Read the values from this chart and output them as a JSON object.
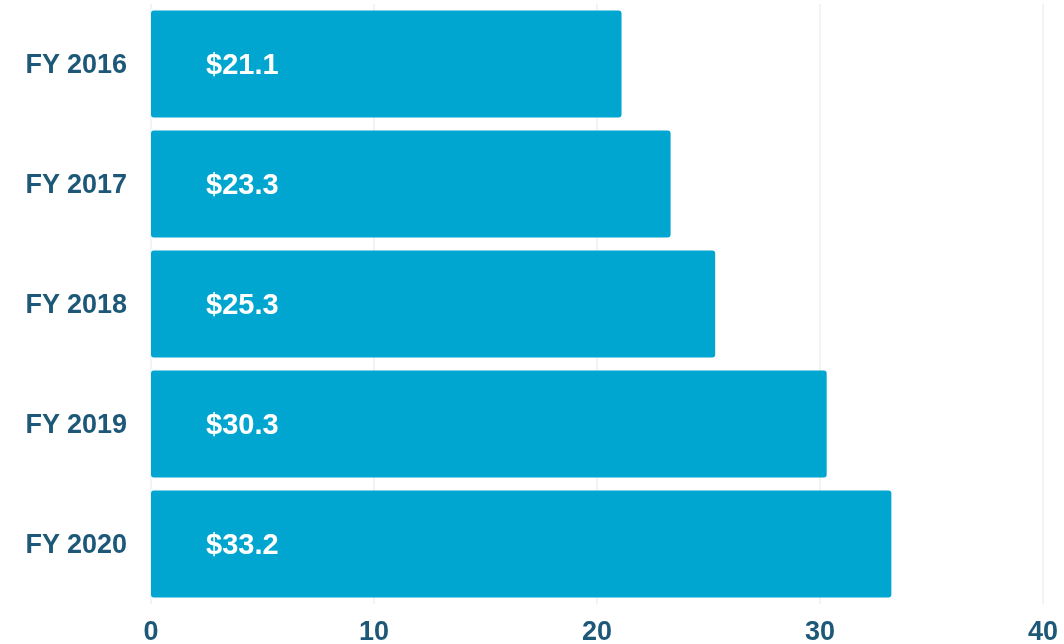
{
  "chart_data": {
    "type": "bar",
    "orientation": "horizontal",
    "categories": [
      "FY 2016",
      "FY 2017",
      "FY 2018",
      "FY 2019",
      "FY 2020"
    ],
    "values": [
      21.1,
      23.3,
      25.3,
      30.3,
      33.2
    ],
    "value_labels": [
      "$21.1",
      "$23.3",
      "$25.3",
      "$30.3",
      "$33.2"
    ],
    "color": "#00a6cf",
    "xlim": [
      0,
      40
    ],
    "xticks": [
      0,
      10,
      20,
      30,
      40
    ],
    "grid": "x"
  }
}
